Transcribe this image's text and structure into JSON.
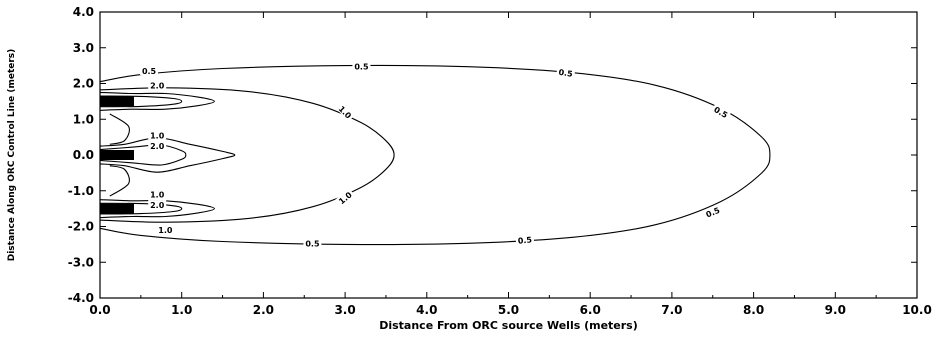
{
  "chart_data": {
    "type": "contour",
    "title": "",
    "xlabel": "Distance From ORC source Wells (meters)",
    "ylabel": "Distance Along ORC Control Line (meters)",
    "xlim": [
      0,
      10
    ],
    "ylim": [
      -4,
      4
    ],
    "x_ticks": [
      "0.0",
      "1.0",
      "2.0",
      "3.0",
      "4.0",
      "5.0",
      "6.0",
      "7.0",
      "8.0",
      "9.0",
      "10.0"
    ],
    "y_ticks": [
      "4.0",
      "3.0",
      "2.0",
      "1.0",
      "0.0",
      "-1.0",
      "-2.0",
      "-3.0",
      "-4.0"
    ],
    "grid": false,
    "source_wells": [
      {
        "x": 0.0,
        "y": 1.5
      },
      {
        "x": 0.0,
        "y": 0.0
      },
      {
        "x": 0.0,
        "y": -1.5
      }
    ],
    "contours": [
      {
        "level": "0.5",
        "points": [
          [
            0,
            2.05
          ],
          [
            0.5,
            2.25
          ],
          [
            1.5,
            2.42
          ],
          [
            3,
            2.5
          ],
          [
            4.5,
            2.47
          ],
          [
            5.8,
            2.3
          ],
          [
            6.8,
            1.95
          ],
          [
            7.6,
            1.3
          ],
          [
            8.1,
            0.5
          ],
          [
            8.2,
            0
          ],
          [
            8.1,
            -0.5
          ],
          [
            7.6,
            -1.3
          ],
          [
            6.8,
            -1.95
          ],
          [
            5.8,
            -2.3
          ],
          [
            4.5,
            -2.47
          ],
          [
            3,
            -2.5
          ],
          [
            1.5,
            -2.42
          ],
          [
            0.5,
            -2.25
          ],
          [
            0,
            -2.05
          ]
        ]
      },
      {
        "level": "1.0",
        "points": [
          [
            0,
            1.82
          ],
          [
            0.8,
            1.88
          ],
          [
            1.8,
            1.78
          ],
          [
            2.6,
            1.45
          ],
          [
            3.2,
            0.9
          ],
          [
            3.5,
            0.4
          ],
          [
            3.6,
            0
          ],
          [
            3.5,
            -0.4
          ],
          [
            3.2,
            -0.9
          ],
          [
            2.6,
            -1.45
          ],
          [
            1.8,
            -1.78
          ],
          [
            0.8,
            -1.88
          ],
          [
            0,
            -1.82
          ]
        ]
      },
      {
        "level": "",
        "points": [
          [
            0,
            0.25
          ],
          [
            0.3,
            0.3
          ],
          [
            0.7,
            0.48
          ],
          [
            1.1,
            0.3
          ],
          [
            1.5,
            0.1
          ],
          [
            1.65,
            0
          ],
          [
            1.5,
            -0.1
          ],
          [
            1.1,
            -0.3
          ],
          [
            0.7,
            -0.48
          ],
          [
            0.3,
            -0.3
          ],
          [
            0,
            -0.25
          ]
        ]
      },
      {
        "level": "",
        "points": [
          [
            0,
            0.15
          ],
          [
            0.4,
            0.22
          ],
          [
            0.75,
            0.28
          ],
          [
            1.0,
            0.12
          ],
          [
            1.05,
            0
          ],
          [
            1.0,
            -0.12
          ],
          [
            0.75,
            -0.28
          ],
          [
            0.4,
            -0.22
          ],
          [
            0,
            -0.15
          ]
        ]
      },
      {
        "level": "",
        "points": [
          [
            0,
            1.75
          ],
          [
            0.4,
            1.72
          ],
          [
            0.8,
            1.72
          ],
          [
            1.2,
            1.62
          ],
          [
            1.4,
            1.5
          ],
          [
            1.2,
            1.38
          ],
          [
            0.8,
            1.28
          ],
          [
            0.4,
            1.28
          ],
          [
            0,
            1.25
          ]
        ]
      },
      {
        "level": "",
        "points": [
          [
            0,
            1.65
          ],
          [
            0.5,
            1.64
          ],
          [
            0.9,
            1.58
          ],
          [
            1.0,
            1.5
          ],
          [
            0.9,
            1.42
          ],
          [
            0.5,
            1.36
          ],
          [
            0,
            1.35
          ]
        ]
      },
      {
        "level": "",
        "points": [
          [
            0,
            -1.25
          ],
          [
            0.4,
            -1.28
          ],
          [
            0.8,
            -1.28
          ],
          [
            1.2,
            -1.38
          ],
          [
            1.4,
            -1.5
          ],
          [
            1.2,
            -1.62
          ],
          [
            0.8,
            -1.72
          ],
          [
            0.4,
            -1.72
          ],
          [
            0,
            -1.75
          ]
        ]
      },
      {
        "level": "",
        "points": [
          [
            0,
            -1.35
          ],
          [
            0.5,
            -1.36
          ],
          [
            0.9,
            -1.42
          ],
          [
            1.0,
            -1.5
          ],
          [
            0.9,
            -1.58
          ],
          [
            0.5,
            -1.64
          ],
          [
            0,
            -1.65
          ]
        ]
      },
      {
        "level": "",
        "points": [
          [
            0.12,
            1.15
          ],
          [
            0.35,
            0.8
          ],
          [
            0.3,
            0.4
          ],
          [
            0.12,
            0.3
          ]
        ]
      },
      {
        "level": "",
        "points": [
          [
            0.12,
            -0.3
          ],
          [
            0.3,
            -0.4
          ],
          [
            0.35,
            -0.8
          ],
          [
            0.12,
            -1.15
          ]
        ]
      }
    ],
    "contour_labels": [
      {
        "text": "0.5",
        "x": 3.2,
        "y": 2.48,
        "rot": 0
      },
      {
        "text": "0.5",
        "x": 5.7,
        "y": 2.3,
        "rot": 8
      },
      {
        "text": "0.5",
        "x": 7.6,
        "y": 1.2,
        "rot": 30
      },
      {
        "text": "0.5",
        "x": 7.5,
        "y": -1.6,
        "rot": -22
      },
      {
        "text": "0.5",
        "x": 5.2,
        "y": -2.38,
        "rot": -6
      },
      {
        "text": "0.5",
        "x": 2.6,
        "y": -2.48,
        "rot": 0
      },
      {
        "text": "1.0",
        "x": 3.0,
        "y": 1.2,
        "rot": 45
      },
      {
        "text": "1.0",
        "x": 3.0,
        "y": -1.2,
        "rot": -40
      },
      {
        "text": "1.0",
        "x": 0.8,
        "y": -2.1,
        "rot": 0
      },
      {
        "text": "0.5",
        "x": 0.6,
        "y": 2.35,
        "rot": 0
      },
      {
        "text": "2.0",
        "x": 0.7,
        "y": 1.95,
        "rot": 0
      },
      {
        "text": "1.0",
        "x": 0.7,
        "y": 0.55,
        "rot": 0
      },
      {
        "text": "2.0",
        "x": 0.7,
        "y": 0.25,
        "rot": 0
      },
      {
        "text": "1.0",
        "x": 0.7,
        "y": -1.1,
        "rot": 0
      },
      {
        "text": "2.0",
        "x": 0.7,
        "y": -1.4,
        "rot": 0
      }
    ]
  }
}
